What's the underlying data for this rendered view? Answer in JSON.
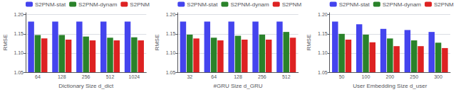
{
  "chart_data": [
    {
      "type": "bar",
      "xlabel": "Dictionary Size d_dict",
      "ylabel": "RMSE",
      "categories": [
        "64",
        "128",
        "256",
        "512",
        "1024"
      ],
      "series": [
        {
          "name": "S2PNM-stat",
          "color": "#4444ee",
          "values": [
            1.182,
            1.182,
            1.182,
            1.182,
            1.182
          ]
        },
        {
          "name": "S2PNM-dynam",
          "color": "#2a822a",
          "values": [
            1.147,
            1.147,
            1.143,
            1.14,
            1.141
          ]
        },
        {
          "name": "S2PNM",
          "color": "#dd2222",
          "values": [
            1.138,
            1.135,
            1.133,
            1.133,
            1.133
          ]
        }
      ],
      "ylim": [
        1.05,
        1.205
      ],
      "yticks": [
        1.05,
        {
          "value": 1.1,
          "label": "1.10"
        },
        1.15,
        {
          "value": 1.2,
          "label": "1.20"
        }
      ],
      "grid": true,
      "legend": "upper left"
    },
    {
      "type": "bar",
      "xlabel": "#GRU Size d_GRU",
      "ylabel": "RMSE",
      "categories": [
        "32",
        "64",
        "128",
        "256",
        "512"
      ],
      "series": [
        {
          "name": "S2PNM-stat",
          "color": "#4444ee",
          "values": [
            1.182,
            1.182,
            1.182,
            1.182,
            1.182
          ]
        },
        {
          "name": "S2PNM-dynam",
          "color": "#2a822a",
          "values": [
            1.148,
            1.14,
            1.145,
            1.148,
            1.155
          ]
        },
        {
          "name": "S2PNM",
          "color": "#dd2222",
          "values": [
            1.138,
            1.133,
            1.135,
            1.135,
            1.14
          ]
        }
      ],
      "ylim": [
        1.05,
        1.205
      ],
      "yticks": [
        1.05,
        {
          "value": 1.1,
          "label": "1.10"
        },
        1.15,
        {
          "value": 1.2,
          "label": "1.20"
        }
      ],
      "grid": true,
      "legend": "upper left"
    },
    {
      "type": "bar",
      "xlabel": "User Embedding Size d_user",
      "ylabel": "RMSE",
      "categories": [
        "50",
        "100",
        "200",
        "250",
        "300"
      ],
      "series": [
        {
          "name": "S2PNM-stat",
          "color": "#4444ee",
          "values": [
            1.182,
            1.175,
            1.163,
            1.16,
            1.155
          ]
        },
        {
          "name": "S2PNM-dynam",
          "color": "#2a822a",
          "values": [
            1.15,
            1.148,
            1.138,
            1.133,
            1.127
          ]
        },
        {
          "name": "S2PNM",
          "color": "#dd2222",
          "values": [
            1.135,
            1.128,
            1.118,
            1.118,
            1.113
          ]
        }
      ],
      "ylim": [
        1.05,
        1.205
      ],
      "yticks": [
        1.05,
        {
          "value": 1.1,
          "label": "1.10"
        },
        1.15,
        {
          "value": 1.2,
          "label": "1.20"
        }
      ],
      "grid": true,
      "legend": "upper left"
    }
  ]
}
